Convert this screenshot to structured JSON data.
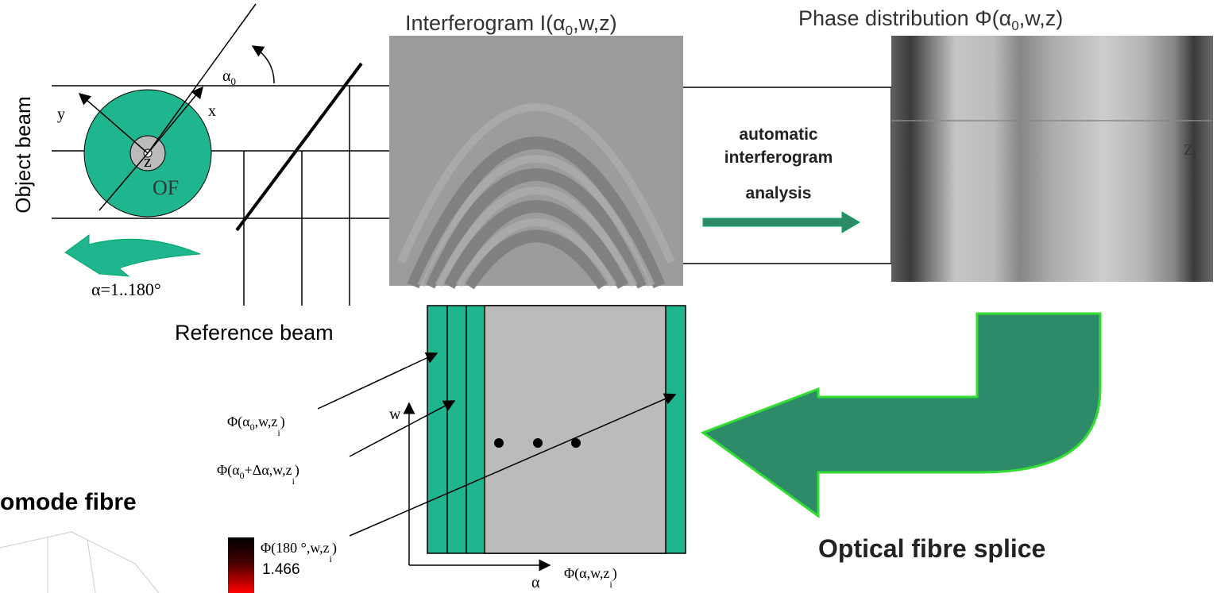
{
  "interferogram": {
    "title": [
      "Interferogram I(α",
      "0",
      ",w,z)"
    ]
  },
  "phase": {
    "title": [
      "Phase distribution Φ(α",
      "0",
      ",w,z)"
    ],
    "slice_label": [
      "Z",
      "i"
    ]
  },
  "geometry": {
    "object_beam": "Object beam",
    "y_axis": "y",
    "x_axis": "x",
    "angle": [
      "α",
      "0"
    ],
    "z_axis": "z",
    "fibre": "OF",
    "rotation": "α=1..180°",
    "reference_beam": "Reference beam"
  },
  "analysis": {
    "lines": [
      "automatic",
      "interferogram",
      "analysis"
    ]
  },
  "sinogram": {
    "w_axis": "w",
    "alpha_axis": "α",
    "labels": [
      [
        "Φ(α",
        "0",
        ",w,z",
        "i",
        ")"
      ],
      [
        "Φ(α",
        "0",
        "+Δα,w,z",
        "i",
        ")"
      ],
      [
        "Φ(180 °,w,z",
        "i",
        ")"
      ]
    ],
    "result": [
      "Φ(α,w,z",
      "i",
      ")"
    ]
  },
  "colorbar": {
    "value": "1.466"
  },
  "captions": {
    "left": "omode fibre",
    "right": "Optical fibre splice"
  }
}
